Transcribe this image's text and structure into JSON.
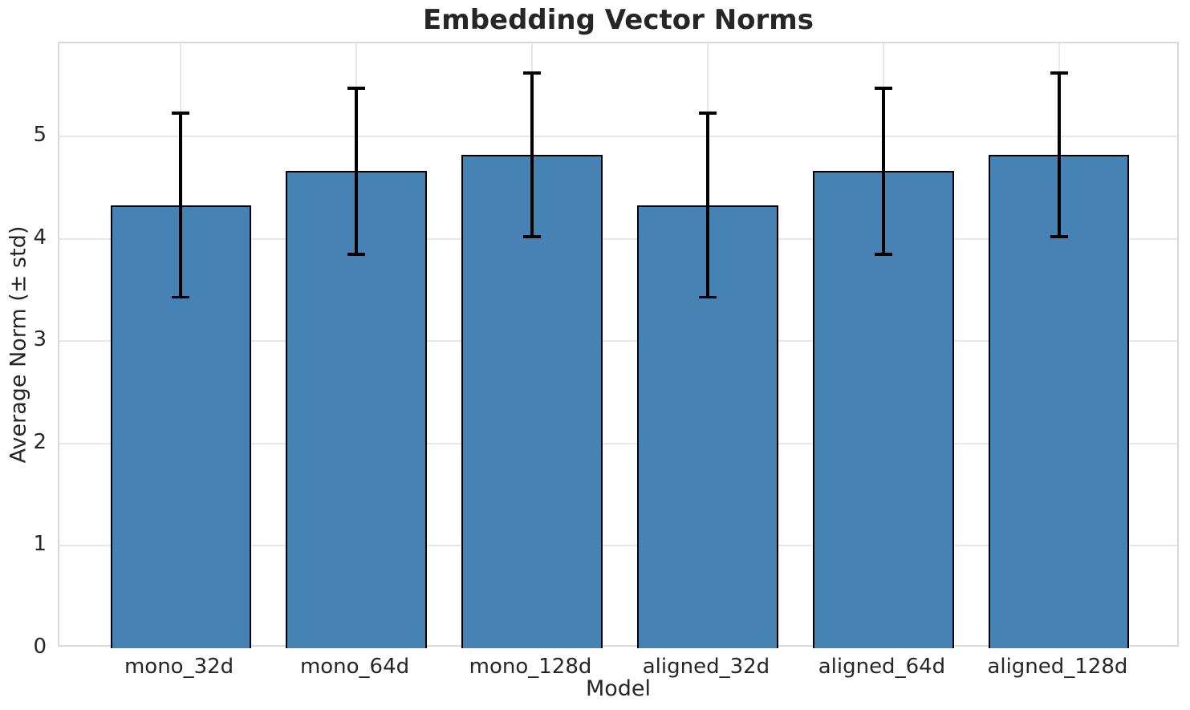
{
  "chart_data": {
    "type": "bar",
    "title": "Embedding Vector Norms",
    "xlabel": "Model",
    "ylabel": "Average Norm (± std)",
    "categories": [
      "mono_32d",
      "mono_64d",
      "mono_128d",
      "aligned_32d",
      "aligned_64d",
      "aligned_128d"
    ],
    "values": [
      4.33,
      4.66,
      4.82,
      4.33,
      4.66,
      4.82
    ],
    "errors": [
      0.9,
      0.81,
      0.8,
      0.9,
      0.81,
      0.8
    ],
    "yticks": [
      0,
      1,
      2,
      3,
      4,
      5
    ],
    "ylim": [
      0,
      5.91
    ],
    "grid": true,
    "legend": "none",
    "bar_width_fraction": 0.8,
    "colors": {
      "bar_fill": "#4682b4",
      "bar_edge": "#000000",
      "error_bar": "#000000",
      "grid_line": "#e8e8e8",
      "spine": "#d9d9d9",
      "text": "#262626"
    }
  }
}
